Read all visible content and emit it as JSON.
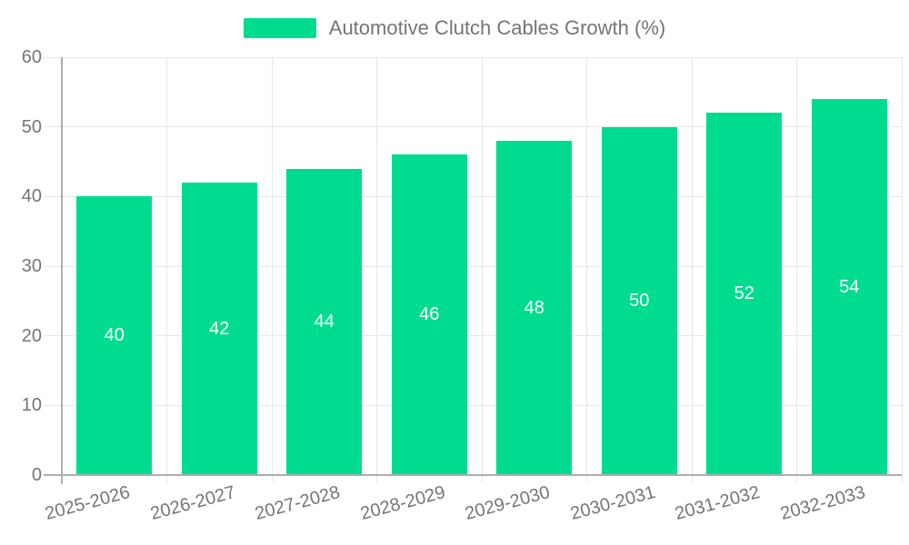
{
  "legend": {
    "label": "Automotive Clutch Cables Growth (%)"
  },
  "chart_data": {
    "type": "bar",
    "title": "Automotive Clutch Cables Growth (%)",
    "categories": [
      "2025-2026",
      "2026-2027",
      "2027-2028",
      "2028-2029",
      "2029-2030",
      "2030-2031",
      "2031-2032",
      "2032-2033"
    ],
    "values": [
      40,
      42,
      44,
      46,
      48,
      50,
      52,
      54
    ],
    "xlabel": "",
    "ylabel": "",
    "ylim": [
      0,
      60
    ],
    "yticks": [
      0,
      10,
      20,
      30,
      40,
      50,
      60
    ],
    "grid": "both",
    "legend_position": "top",
    "x_label_rotation": -15,
    "colors": {
      "bar": "#00DC8F",
      "bar_value_text": "#ffffff",
      "axis_text": "#757575",
      "gridline": "#e7e7e7",
      "axis_line": "#adadad",
      "background": "#ffffff"
    }
  }
}
